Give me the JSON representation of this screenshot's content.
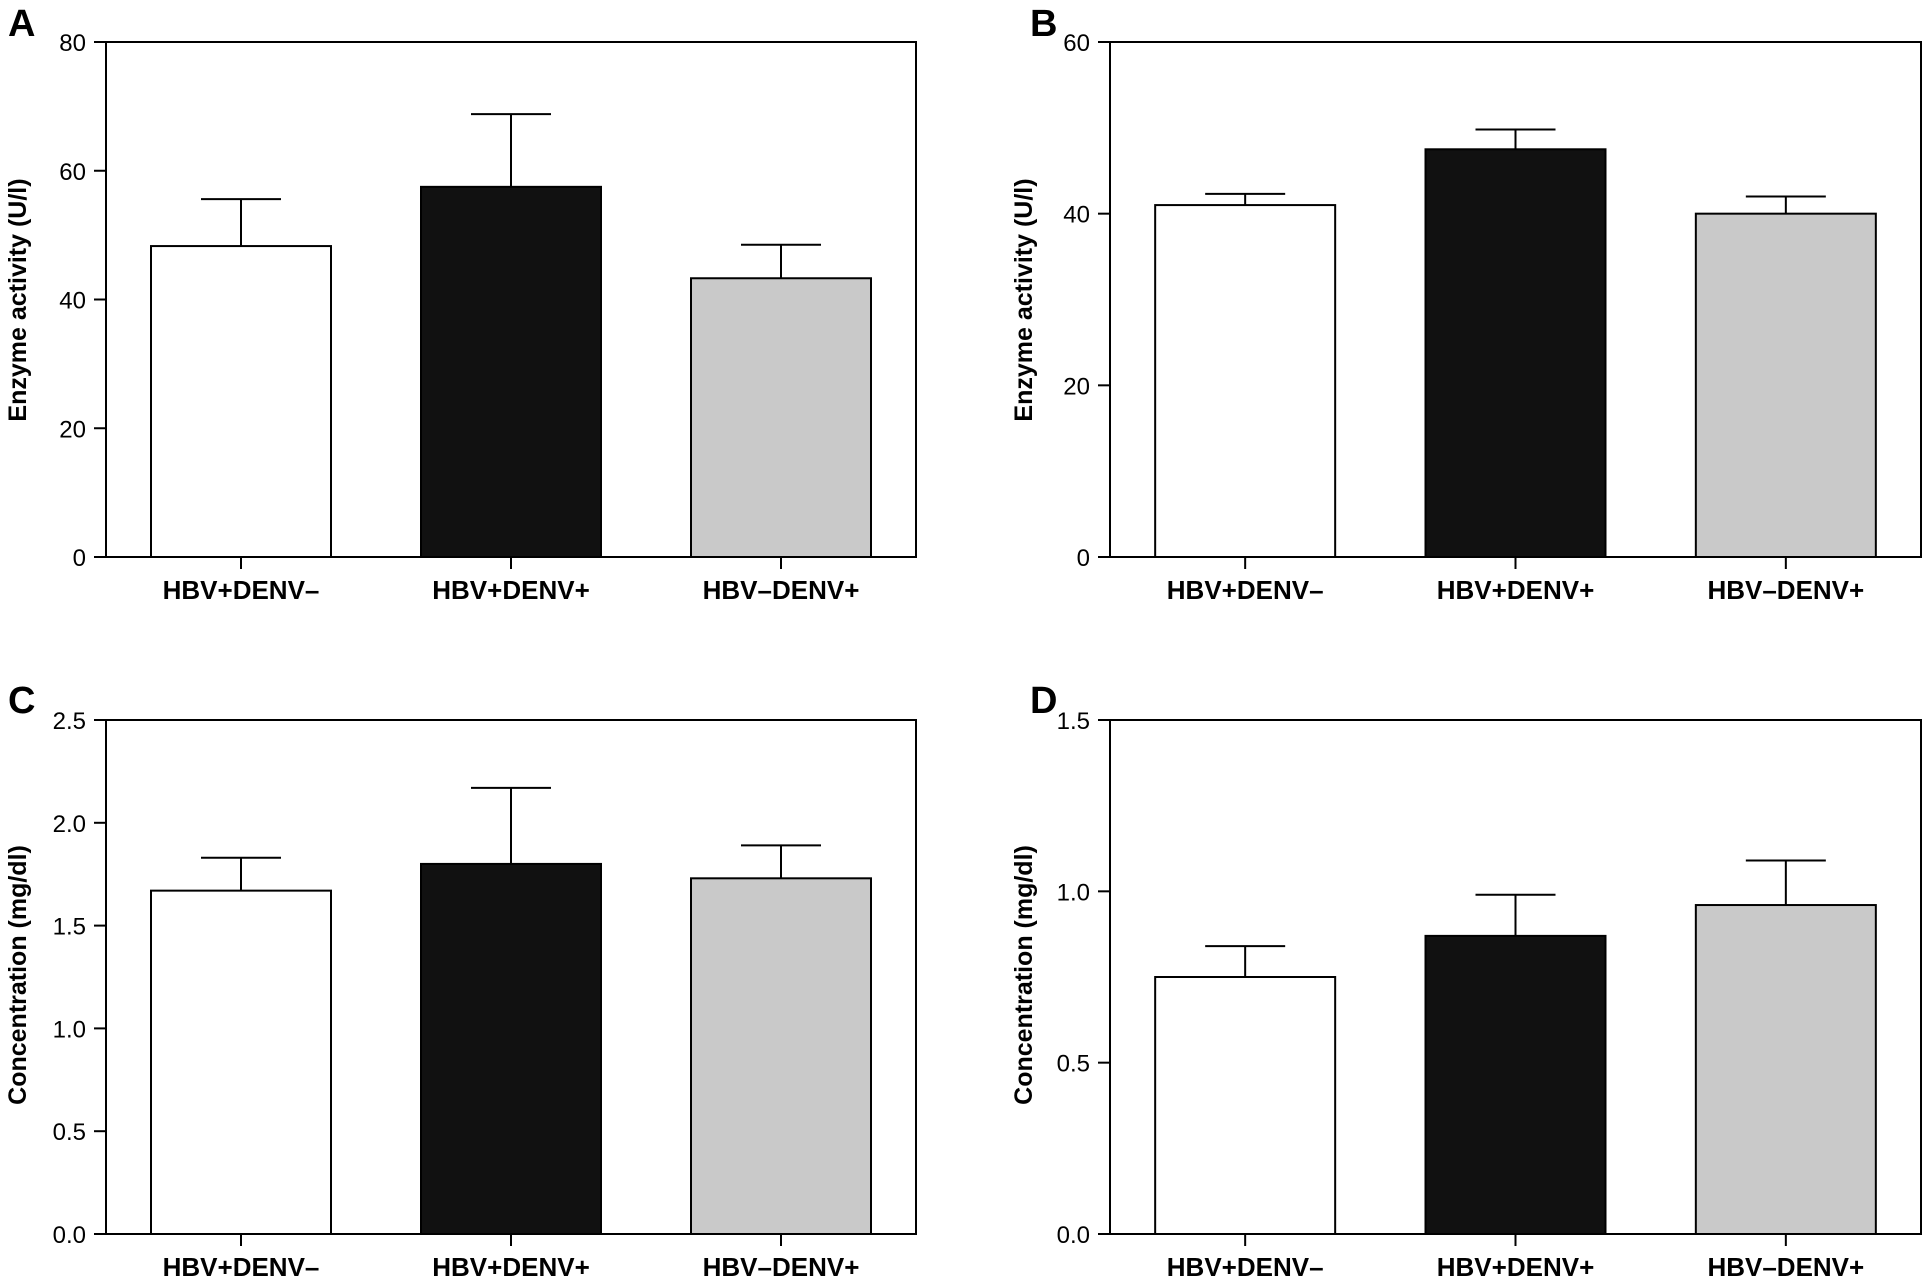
{
  "colors": {
    "white_bar": "#ffffff",
    "black_bar": "#111111",
    "grey_bar": "#c9c9c9",
    "axis": "#000000"
  },
  "chart_data": [
    {
      "panel": "A",
      "type": "bar",
      "categories": [
        "HBV+DENV–",
        "HBV+DENV+",
        "HBV–DENV+"
      ],
      "values": [
        48.3,
        57.5,
        43.3
      ],
      "errors": [
        7.3,
        11.3,
        5.2
      ],
      "ylabel": "Enzyme activity (U/l)",
      "ylim": [
        0,
        80
      ],
      "yticks": [
        0,
        20,
        40,
        60,
        80
      ],
      "ytick_labels": [
        "0",
        "20",
        "40",
        "60",
        "80"
      ]
    },
    {
      "panel": "B",
      "type": "bar",
      "categories": [
        "HBV+DENV–",
        "HBV+DENV+",
        "HBV–DENV+"
      ],
      "values": [
        41.0,
        47.5,
        40.0
      ],
      "errors": [
        1.3,
        2.3,
        2.0
      ],
      "ylabel": "Enzyme activity (U/l)",
      "ylim": [
        0,
        60
      ],
      "yticks": [
        0,
        20,
        40,
        60
      ],
      "ytick_labels": [
        "0",
        "20",
        "40",
        "60"
      ]
    },
    {
      "panel": "C",
      "type": "bar",
      "categories": [
        "HBV+DENV–",
        "HBV+DENV+",
        "HBV–DENV+"
      ],
      "values": [
        1.67,
        1.8,
        1.73
      ],
      "errors": [
        0.16,
        0.37,
        0.16
      ],
      "ylabel": "Concentration (mg/dl)",
      "ylim": [
        0,
        2.5
      ],
      "yticks": [
        0,
        0.5,
        1.0,
        1.5,
        2.0,
        2.5
      ],
      "ytick_labels": [
        "0.0",
        "0.5",
        "1.0",
        "1.5",
        "2.0",
        "2.5"
      ]
    },
    {
      "panel": "D",
      "type": "bar",
      "categories": [
        "HBV+DENV–",
        "HBV+DENV+",
        "HBV–DENV+"
      ],
      "values": [
        0.75,
        0.87,
        0.96
      ],
      "errors": [
        0.09,
        0.12,
        0.13
      ],
      "ylabel": "Concentration (mg/dl)",
      "ylim": [
        0,
        1.5
      ],
      "yticks": [
        0,
        0.5,
        1.0,
        1.5
      ],
      "ytick_labels": [
        "0.0",
        "0.5",
        "1.0",
        "1.5"
      ]
    }
  ]
}
